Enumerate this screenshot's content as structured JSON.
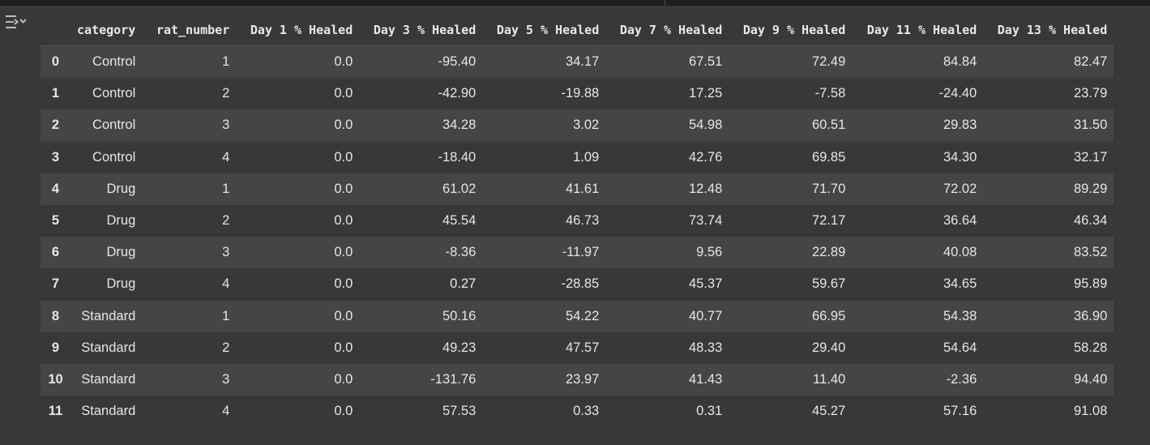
{
  "table": {
    "columns": [
      "",
      "category",
      "rat_number",
      "Day 1 % Healed",
      "Day 3 % Healed",
      "Day 5 % Healed",
      "Day 7 % Healed",
      "Day 9 % Healed",
      "Day 11 % Healed",
      "Day 13 % Healed"
    ],
    "rows": [
      [
        "0",
        "Control",
        "1",
        "0.0",
        "-95.40",
        "34.17",
        "67.51",
        "72.49",
        "84.84",
        "82.47"
      ],
      [
        "1",
        "Control",
        "2",
        "0.0",
        "-42.90",
        "-19.88",
        "17.25",
        "-7.58",
        "-24.40",
        "23.79"
      ],
      [
        "2",
        "Control",
        "3",
        "0.0",
        "34.28",
        "3.02",
        "54.98",
        "60.51",
        "29.83",
        "31.50"
      ],
      [
        "3",
        "Control",
        "4",
        "0.0",
        "-18.40",
        "1.09",
        "42.76",
        "69.85",
        "34.30",
        "32.17"
      ],
      [
        "4",
        "Drug",
        "1",
        "0.0",
        "61.02",
        "41.61",
        "12.48",
        "71.70",
        "72.02",
        "89.29"
      ],
      [
        "5",
        "Drug",
        "2",
        "0.0",
        "45.54",
        "46.73",
        "73.74",
        "72.17",
        "36.64",
        "46.34"
      ],
      [
        "6",
        "Drug",
        "3",
        "0.0",
        "-8.36",
        "-11.97",
        "9.56",
        "22.89",
        "40.08",
        "83.52"
      ],
      [
        "7",
        "Drug",
        "4",
        "0.0",
        "0.27",
        "-28.85",
        "45.37",
        "59.67",
        "34.65",
        "95.89"
      ],
      [
        "8",
        "Standard",
        "1",
        "0.0",
        "50.16",
        "54.22",
        "40.77",
        "66.95",
        "54.38",
        "36.90"
      ],
      [
        "9",
        "Standard",
        "2",
        "0.0",
        "49.23",
        "47.57",
        "48.33",
        "29.40",
        "54.64",
        "58.28"
      ],
      [
        "10",
        "Standard",
        "3",
        "0.0",
        "-131.76",
        "23.97",
        "41.43",
        "11.40",
        "-2.36",
        "94.40"
      ],
      [
        "11",
        "Standard",
        "4",
        "0.0",
        "57.53",
        "0.33",
        "0.31",
        "45.27",
        "57.16",
        "91.08"
      ]
    ]
  },
  "icons": {
    "output_action": "output-actions-icon"
  },
  "colors": {
    "background": "#383838",
    "row_alt": "#454545",
    "text": "#e6e6e6"
  }
}
